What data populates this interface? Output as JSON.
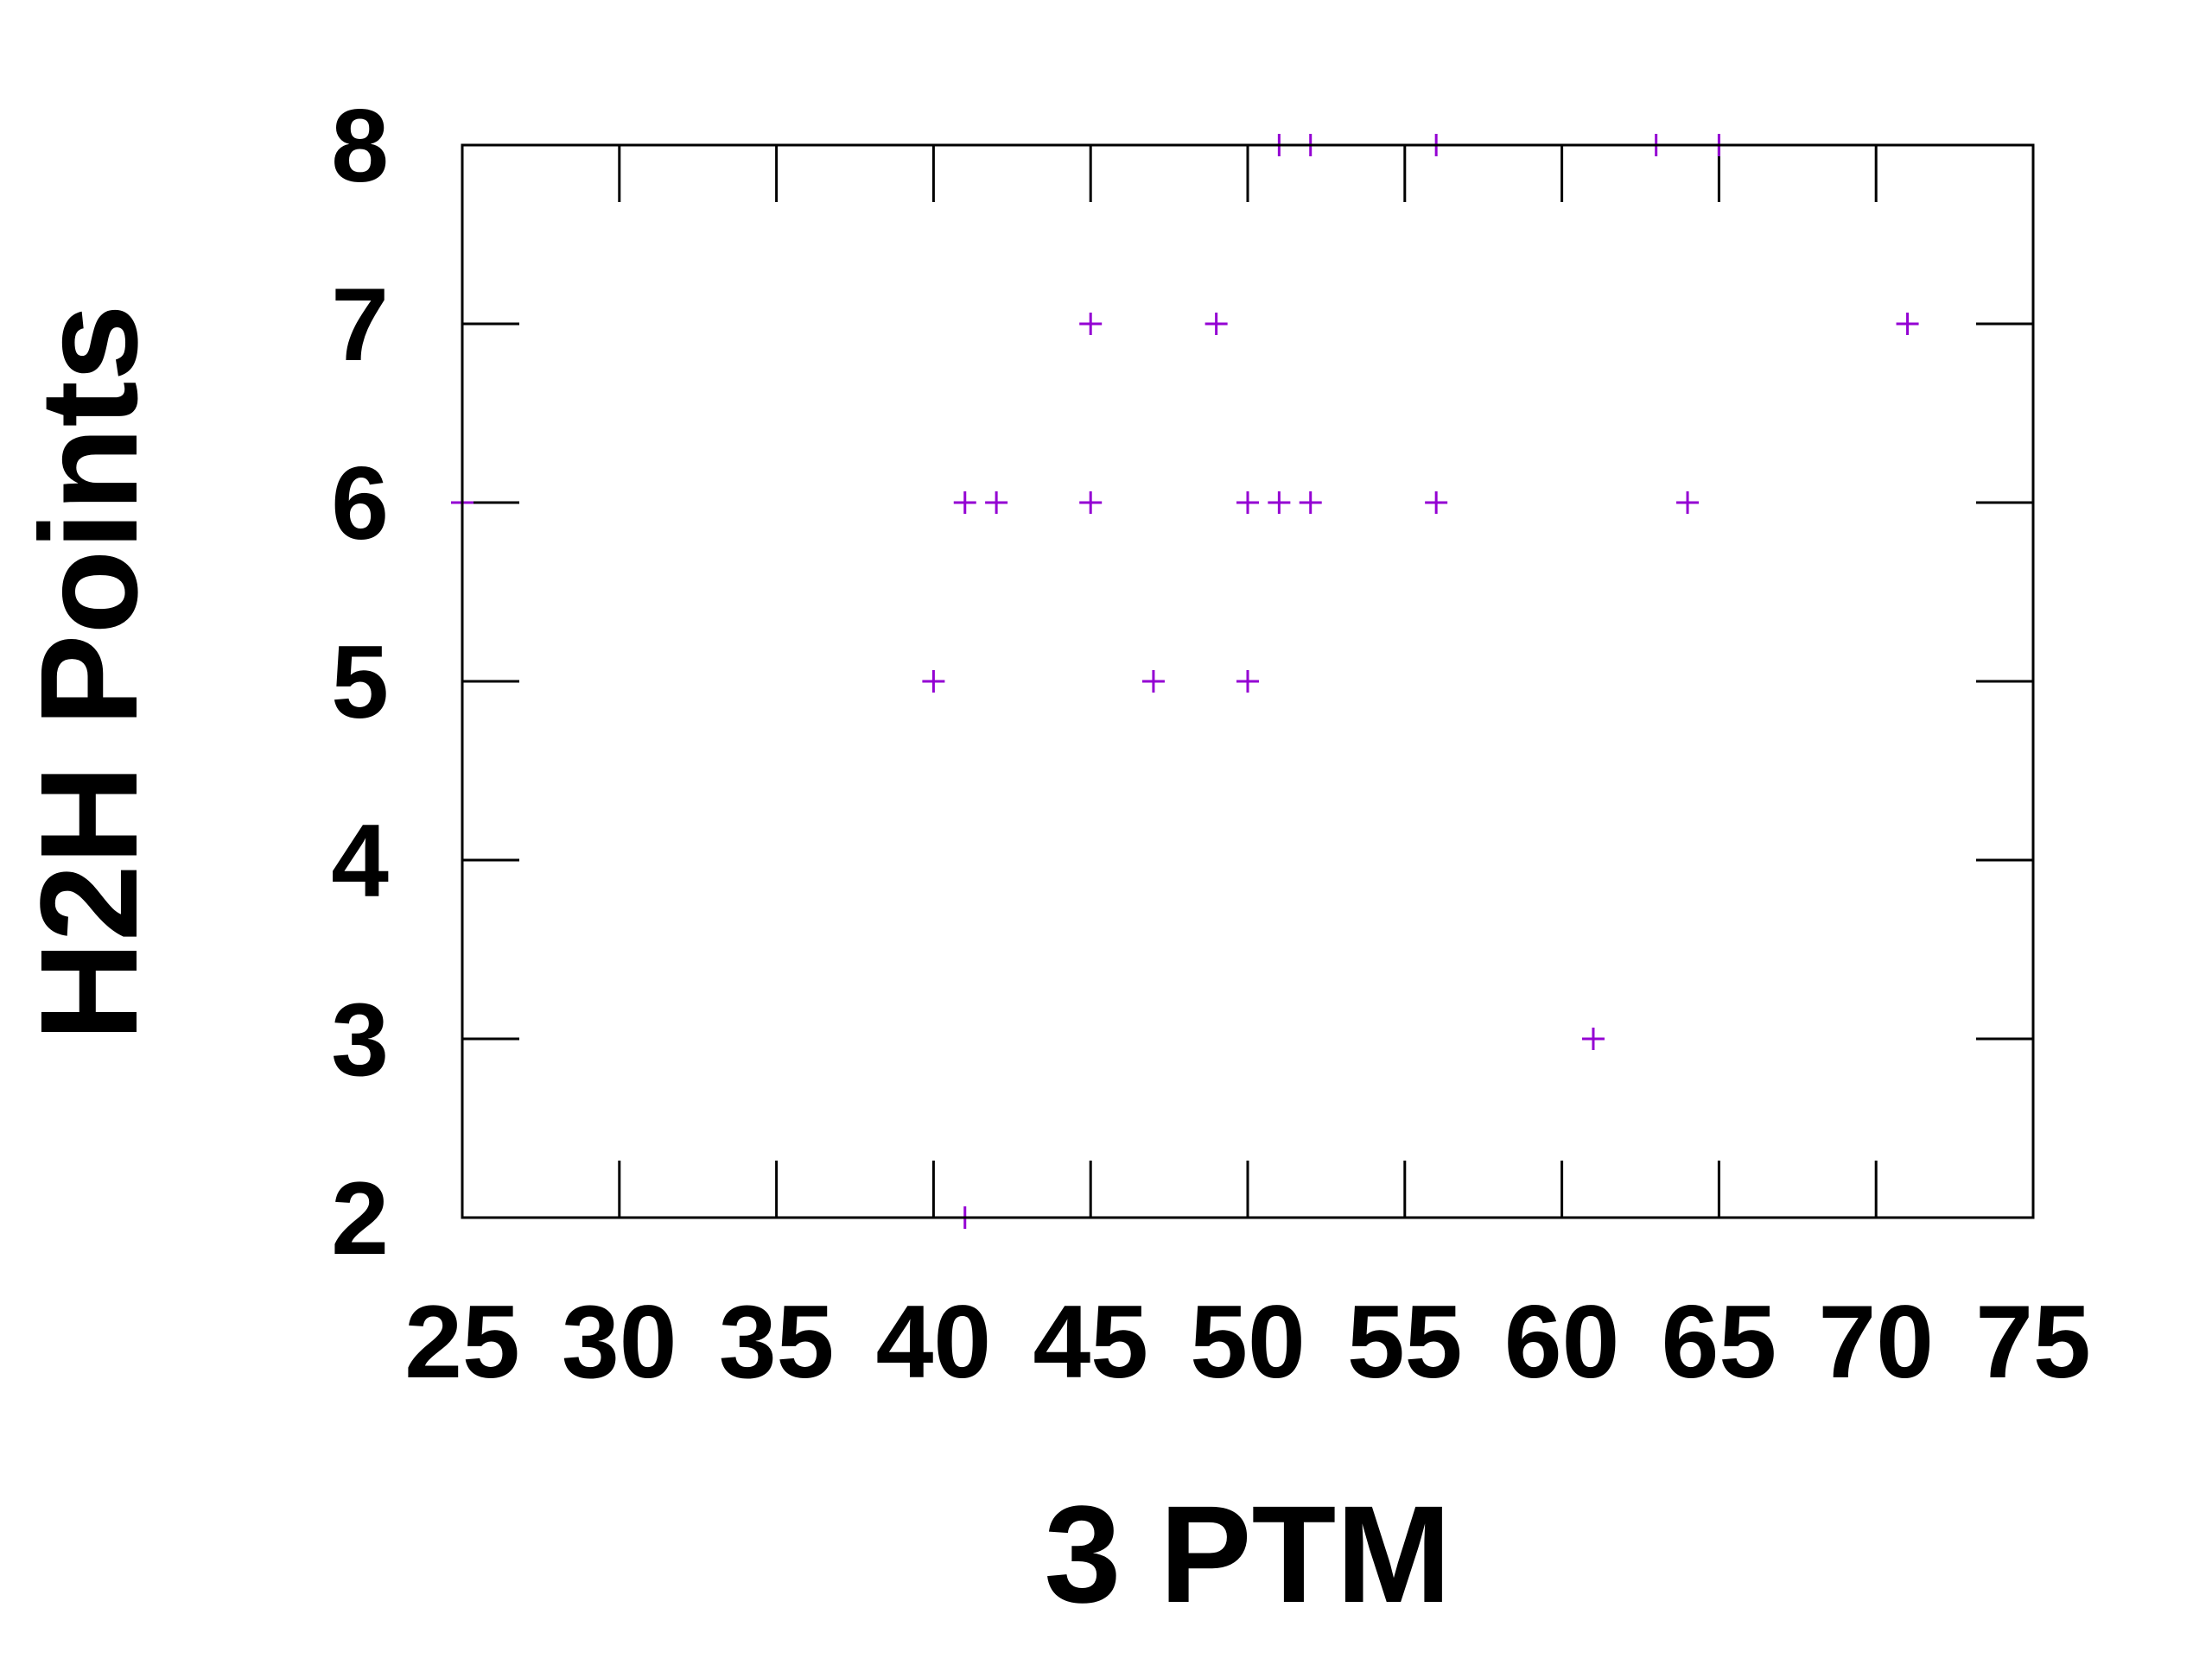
{
  "chart_data": {
    "type": "scatter",
    "title": "",
    "xlabel": "3 PTM",
    "ylabel": "H2H Points",
    "xlim": [
      25,
      75
    ],
    "ylim": [
      2,
      8
    ],
    "xticks": [
      25,
      30,
      35,
      40,
      45,
      50,
      55,
      60,
      65,
      70,
      75
    ],
    "yticks": [
      2,
      3,
      4,
      5,
      6,
      7,
      8
    ],
    "grid": false,
    "legend": "none",
    "marker": "plus",
    "color": "#9400d3",
    "points": [
      {
        "x": 25.0,
        "y": 6
      },
      {
        "x": 40.0,
        "y": 5
      },
      {
        "x": 41.0,
        "y": 6
      },
      {
        "x": 42.0,
        "y": 6
      },
      {
        "x": 41.0,
        "y": 2
      },
      {
        "x": 45.0,
        "y": 7
      },
      {
        "x": 45.0,
        "y": 6
      },
      {
        "x": 47.0,
        "y": 5
      },
      {
        "x": 49.0,
        "y": 7
      },
      {
        "x": 50.0,
        "y": 6
      },
      {
        "x": 50.0,
        "y": 5
      },
      {
        "x": 51.0,
        "y": 6
      },
      {
        "x": 52.0,
        "y": 6
      },
      {
        "x": 51.0,
        "y": 8
      },
      {
        "x": 52.0,
        "y": 8
      },
      {
        "x": 56.0,
        "y": 8
      },
      {
        "x": 56.0,
        "y": 6
      },
      {
        "x": 61.0,
        "y": 3
      },
      {
        "x": 63.0,
        "y": 8
      },
      {
        "x": 64.0,
        "y": 6
      },
      {
        "x": 65.0,
        "y": 8
      },
      {
        "x": 71.0,
        "y": 7
      }
    ]
  }
}
